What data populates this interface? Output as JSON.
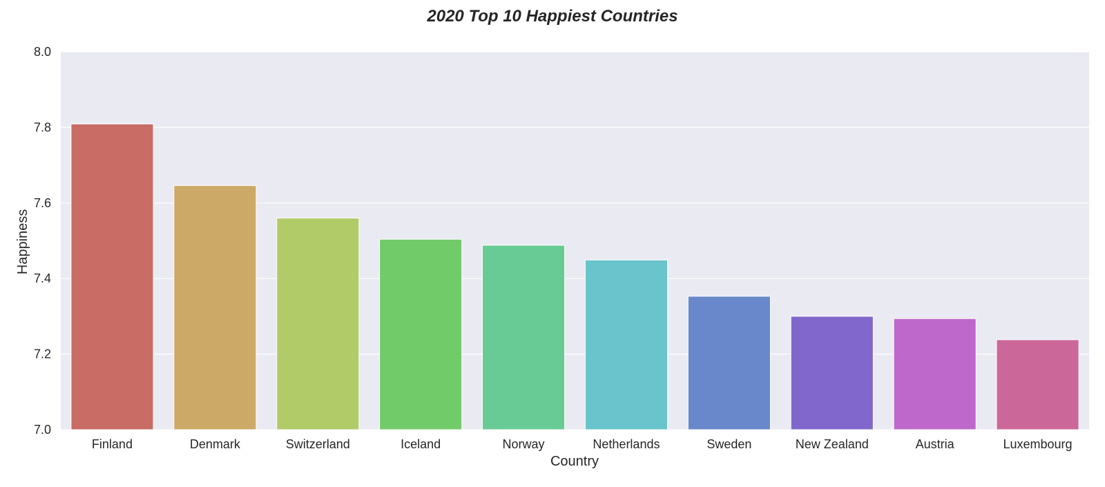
{
  "chart_data": {
    "type": "bar",
    "title": "2020 Top 10 Happiest Countries",
    "xlabel": "Country",
    "ylabel": "Happiness",
    "categories": [
      "Finland",
      "Denmark",
      "Switzerland",
      "Iceland",
      "Norway",
      "Netherlands",
      "Sweden",
      "New Zealand",
      "Austria",
      "Luxembourg"
    ],
    "values": [
      7.809,
      7.646,
      7.56,
      7.504,
      7.488,
      7.449,
      7.353,
      7.3,
      7.294,
      7.238
    ],
    "ylim": [
      7.0,
      8.0
    ],
    "yticks": [
      "7.0",
      "7.2",
      "7.4",
      "7.6",
      "7.8",
      "8.0"
    ],
    "grid": true,
    "legend": "none",
    "colors": [
      "#c96c66",
      "#cca967",
      "#b1cb69",
      "#72cb69",
      "#68cb95",
      "#69c4cb",
      "#6888cb",
      "#8167cb",
      "#be68cb",
      "#cb6899"
    ],
    "background": "#eaeaf2"
  }
}
